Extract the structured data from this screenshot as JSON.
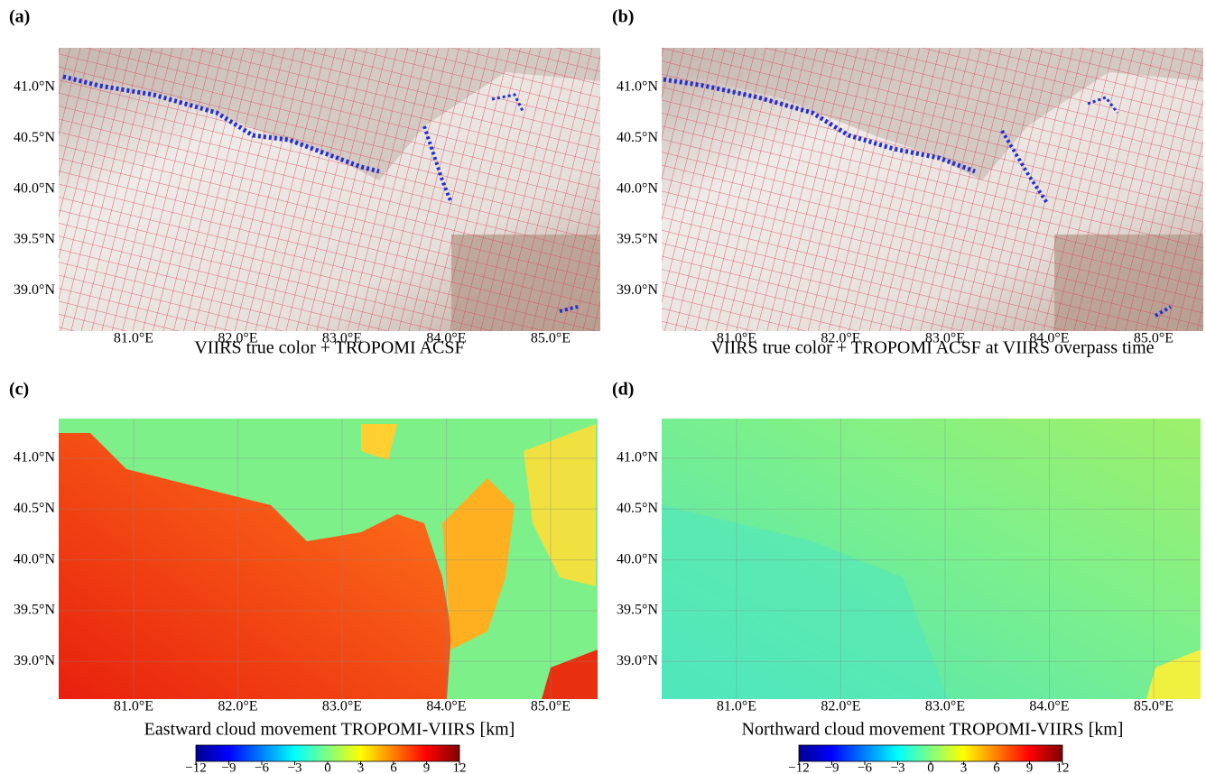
{
  "panels": [
    {
      "label": "(a)",
      "caption": "VIIRS true color + TROPOMI ACSF"
    },
    {
      "label": "(b)",
      "caption": "VIIRS true color + TROPOMI ACSF at VIIRS overpass time"
    },
    {
      "label": "(c)",
      "caption": "Eastward cloud movement TROPOMI-VIIRS [km]"
    },
    {
      "label": "(d)",
      "caption": "Northward cloud movement TROPOMI-VIIRS [km]"
    }
  ],
  "lat_ticks": [
    {
      "value": 41.0,
      "label": "41.0°N"
    },
    {
      "value": 40.5,
      "label": "40.5°N"
    },
    {
      "value": 40.0,
      "label": "40.0°N"
    },
    {
      "value": 39.5,
      "label": "39.5°N"
    },
    {
      "value": 39.0,
      "label": "39.0°N"
    }
  ],
  "lon_ticks": [
    {
      "value": 81.0,
      "label": "81.0°E"
    },
    {
      "value": 82.0,
      "label": "82.0°E"
    },
    {
      "value": 83.0,
      "label": "83.0°E"
    },
    {
      "value": 84.0,
      "label": "84.0°E"
    },
    {
      "value": 85.0,
      "label": "85.0°E"
    }
  ],
  "colorbar_ticks": [
    {
      "value": -12,
      "label": "−12"
    },
    {
      "value": -9,
      "label": "−9"
    },
    {
      "value": -6,
      "label": "−6"
    },
    {
      "value": -3,
      "label": "−3"
    },
    {
      "value": 0,
      "label": "0"
    },
    {
      "value": 3,
      "label": "3"
    },
    {
      "value": 6,
      "label": "6"
    },
    {
      "value": 9,
      "label": "9"
    },
    {
      "value": 12,
      "label": "12"
    }
  ]
}
